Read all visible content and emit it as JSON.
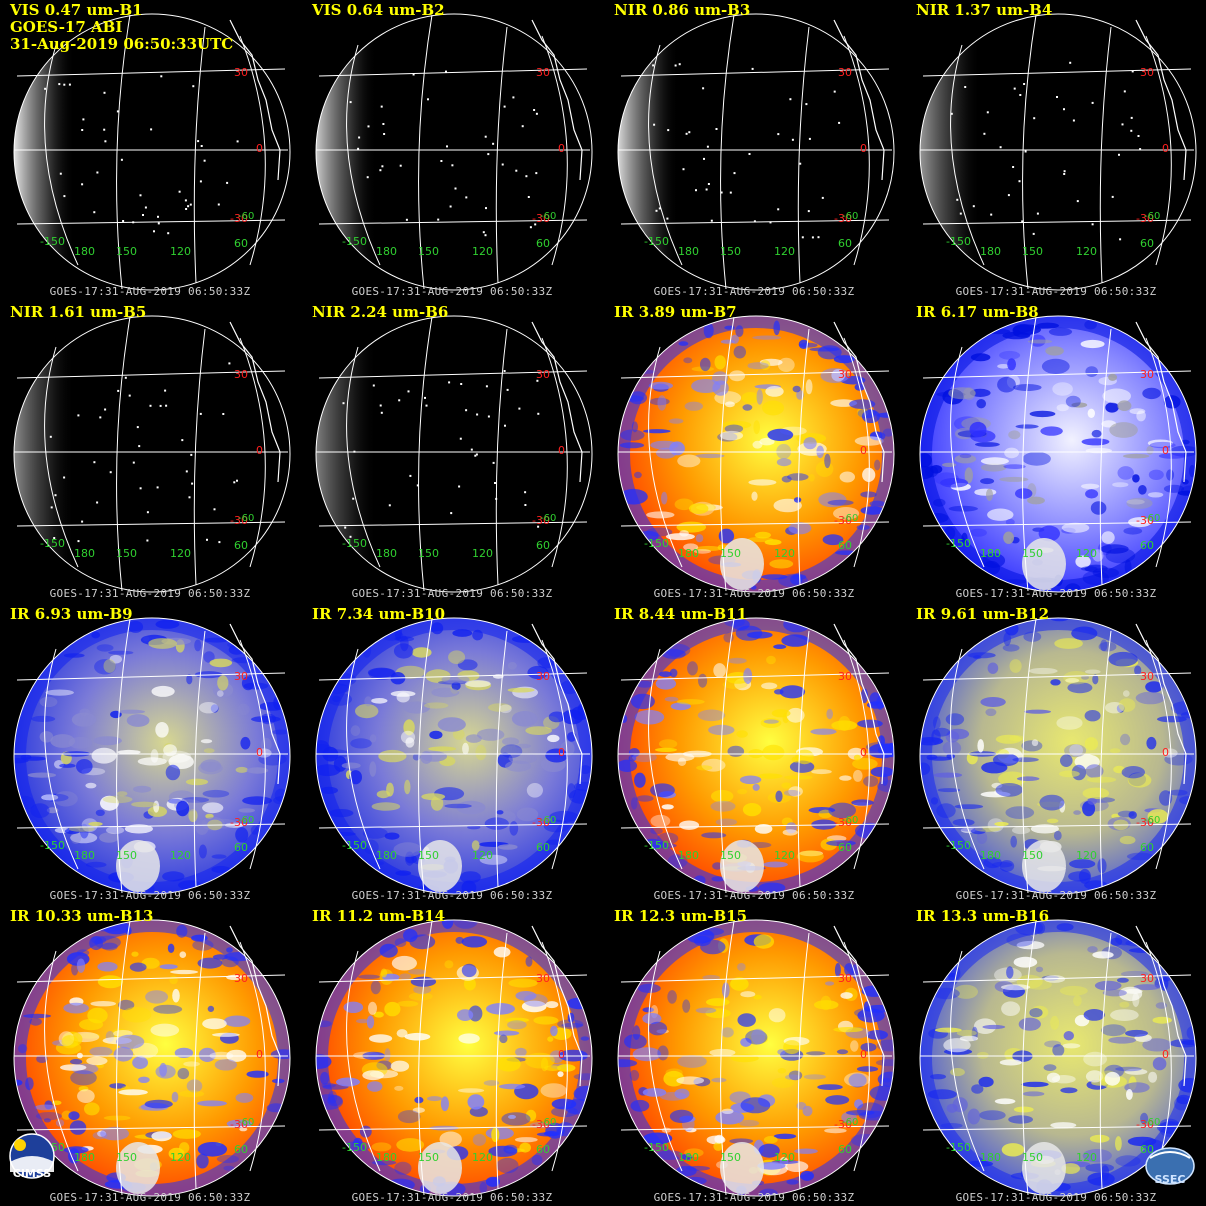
{
  "header_lines": [
    "GOES-17 ABI",
    "31-Aug-2019 06:50:33UTC"
  ],
  "footer_text": "GOES-17:31-AUG-2019 06:50:33Z",
  "lat_labels": [
    "30",
    "0",
    "-30"
  ],
  "lon_labels": [
    "-150",
    "180",
    "150",
    "120",
    "60"
  ],
  "extra_lat_label": "-60",
  "colors": {
    "title": "#ffff00",
    "lat_label": "#ff2020",
    "lon_label": "#30d030",
    "footer": "#cfcfcf"
  },
  "logos": {
    "left": "CIMSS",
    "right": "SSEC"
  },
  "panels": [
    {
      "title": "VIS 0.47 um-B1",
      "style": "vis",
      "limb": 0.9
    },
    {
      "title": "VIS 0.64 um-B2",
      "style": "vis",
      "limb": 0.8
    },
    {
      "title": "NIR 0.86 um-B3",
      "style": "vis",
      "limb": 0.85
    },
    {
      "title": "NIR 1.37 um-B4",
      "style": "vis",
      "limb": 0.6
    },
    {
      "title": "NIR 1.61 um-B5",
      "style": "vis",
      "limb": 0.55
    },
    {
      "title": "NIR 2.24 um-B6",
      "style": "vis",
      "limb": 0.5
    },
    {
      "title": "IR 3.89 um-B7",
      "style": "ir_warm"
    },
    {
      "title": "IR 6.17 um-B8",
      "style": "wv_blue"
    },
    {
      "title": "IR 6.93 um-B9",
      "style": "wv_mix"
    },
    {
      "title": "IR 7.34 um-B10",
      "style": "wv_mix"
    },
    {
      "title": "IR 8.44 um-B11",
      "style": "ir_warm"
    },
    {
      "title": "IR 9.61 um-B12",
      "style": "wv_yellow"
    },
    {
      "title": "IR 10.33 um-B13",
      "style": "ir_warm"
    },
    {
      "title": "IR 11.2 um-B14",
      "style": "ir_warm"
    },
    {
      "title": "IR 12.3 um-B15",
      "style": "ir_warm"
    },
    {
      "title": "IR 13.3 um-B16",
      "style": "wv_yellow"
    }
  ]
}
